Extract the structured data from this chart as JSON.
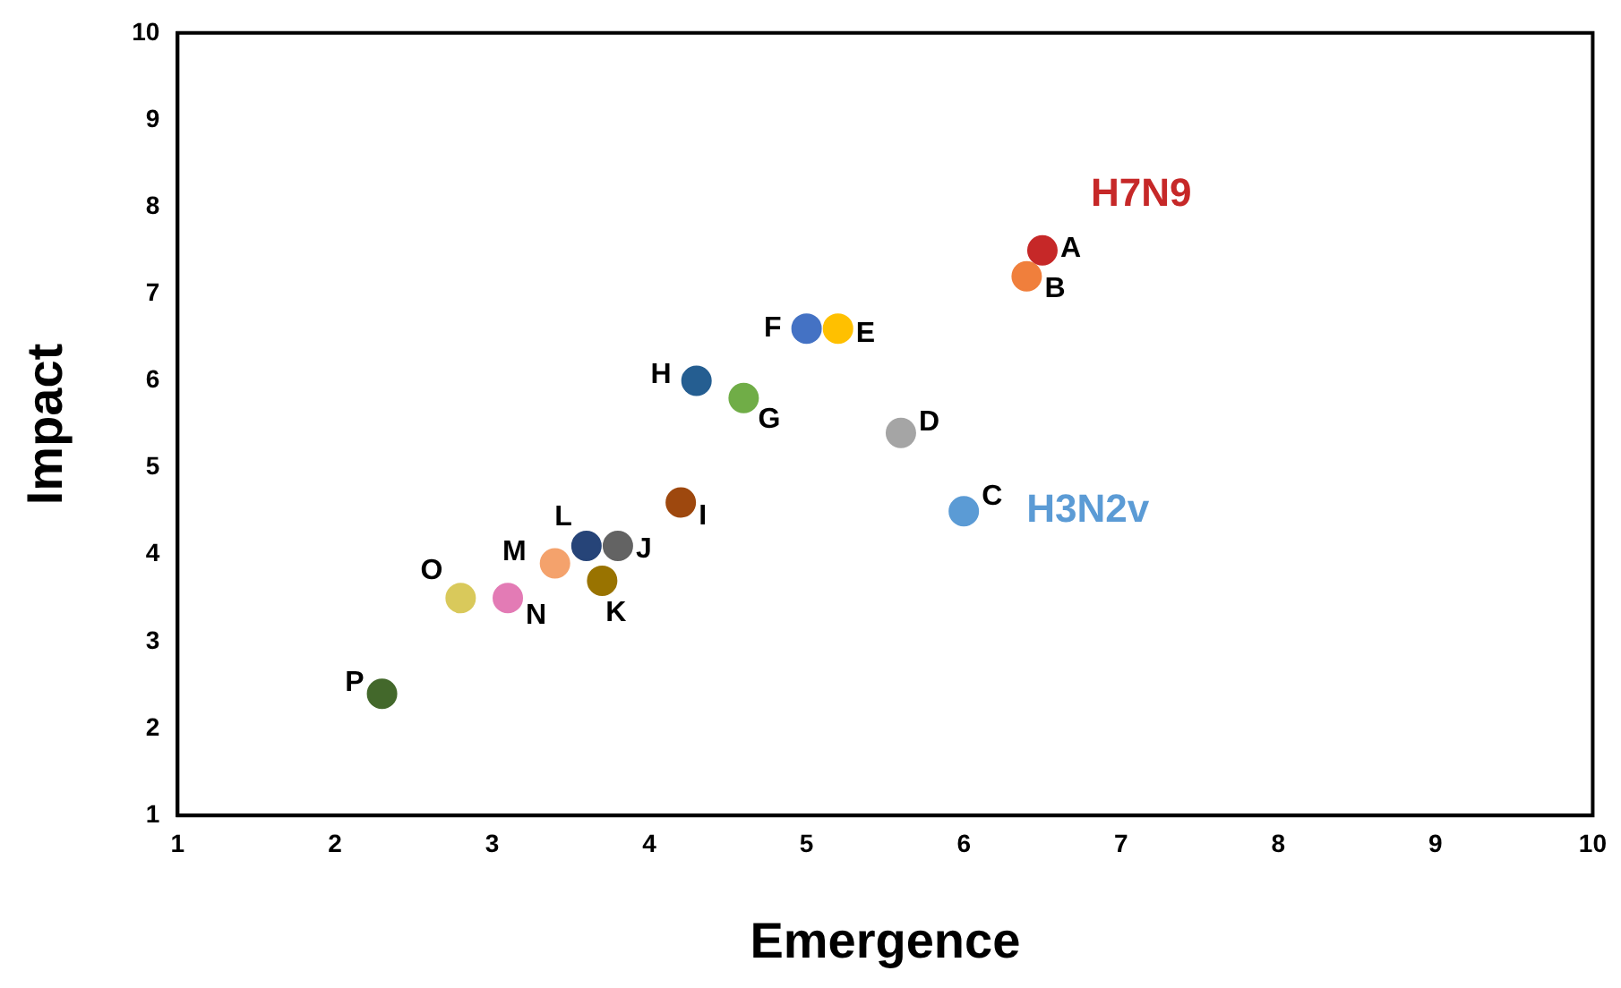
{
  "chart_data": {
    "type": "scatter",
    "xlabel": "Emergence",
    "ylabel": "Impact",
    "xlim": [
      1,
      10
    ],
    "ylim": [
      1,
      10
    ],
    "xticks": [
      1,
      2,
      3,
      4,
      5,
      6,
      7,
      8,
      9,
      10
    ],
    "yticks": [
      1,
      2,
      3,
      4,
      5,
      6,
      7,
      8,
      9,
      10
    ],
    "grid": false,
    "legend": false,
    "marker": "circle",
    "series": [
      {
        "name": "A",
        "color": "#c62828",
        "x": [
          6.5
        ],
        "values": [
          7.5
        ]
      },
      {
        "name": "B",
        "color": "#f07f3c",
        "x": [
          6.4
        ],
        "values": [
          7.2
        ]
      },
      {
        "name": "C",
        "color": "#5b9bd5",
        "x": [
          6.0
        ],
        "values": [
          4.5
        ]
      },
      {
        "name": "D",
        "color": "#a5a5a5",
        "x": [
          5.6
        ],
        "values": [
          5.4
        ]
      },
      {
        "name": "E",
        "color": "#ffc000",
        "x": [
          5.2
        ],
        "values": [
          6.6
        ]
      },
      {
        "name": "F",
        "color": "#4472c4",
        "x": [
          5.0
        ],
        "values": [
          6.6
        ]
      },
      {
        "name": "G",
        "color": "#70ad47",
        "x": [
          4.6
        ],
        "values": [
          5.8
        ]
      },
      {
        "name": "H",
        "color": "#255e91",
        "x": [
          4.3
        ],
        "values": [
          6.0
        ]
      },
      {
        "name": "I",
        "color": "#9e480e",
        "x": [
          4.2
        ],
        "values": [
          4.6
        ]
      },
      {
        "name": "J",
        "color": "#636363",
        "x": [
          3.8
        ],
        "values": [
          4.1
        ]
      },
      {
        "name": "K",
        "color": "#997300",
        "x": [
          3.7
        ],
        "values": [
          3.7
        ]
      },
      {
        "name": "L",
        "color": "#264478",
        "x": [
          3.6
        ],
        "values": [
          4.1
        ]
      },
      {
        "name": "M",
        "color": "#f4a26c",
        "x": [
          3.4
        ],
        "values": [
          3.9
        ]
      },
      {
        "name": "N",
        "color": "#e37bb5",
        "x": [
          3.1
        ],
        "values": [
          3.5
        ]
      },
      {
        "name": "O",
        "color": "#d9c95b",
        "x": [
          2.8
        ],
        "values": [
          3.5
        ]
      },
      {
        "name": "P",
        "color": "#43682b",
        "x": [
          2.3
        ],
        "values": [
          2.4
        ]
      }
    ],
    "annotations": [
      {
        "text": "H7N9",
        "x": 6.5,
        "y": 7.5
      },
      {
        "text": "H3N2v",
        "x": 6.0,
        "y": 4.5
      }
    ]
  }
}
